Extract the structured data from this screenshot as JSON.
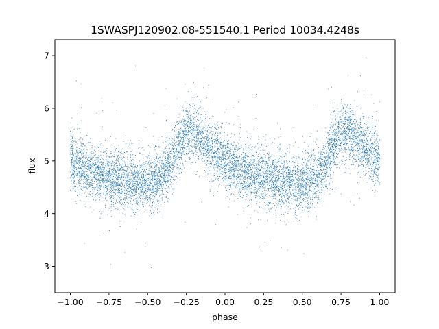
{
  "chart_data": {
    "type": "scatter",
    "title": "1SWASPJ120902.08-551540.1 Period 10034.4248s",
    "xlabel": "phase",
    "ylabel": "flux",
    "xlim": [
      -1.1,
      1.1
    ],
    "ylim": [
      2.5,
      7.3
    ],
    "xticks": [
      -1.0,
      -0.75,
      -0.5,
      -0.25,
      0.0,
      0.25,
      0.5,
      0.75,
      1.0
    ],
    "xtick_labels": [
      "−1.00",
      "−0.75",
      "−0.50",
      "−0.25",
      "0.00",
      "0.25",
      "0.50",
      "0.75",
      "1.00"
    ],
    "yticks": [
      3,
      4,
      5,
      6,
      7
    ],
    "ytick_labels": [
      "3",
      "4",
      "5",
      "6",
      "7"
    ],
    "grid": false,
    "legend": "none",
    "marker_color": "#1f77b4",
    "series": [
      {
        "phase_range": [
          -1.0,
          1.0
        ],
        "periods_shown": 2,
        "point_count_approx": 9000,
        "mean_flux_profile": {
          "phase": [
            0.0,
            0.1,
            0.2,
            0.3,
            0.4,
            0.5,
            0.55,
            0.6,
            0.65,
            0.7,
            0.75,
            0.8,
            0.85,
            0.9,
            0.95,
            1.0
          ],
          "flux": [
            5.0,
            4.85,
            4.72,
            4.66,
            4.6,
            4.57,
            4.62,
            4.75,
            4.98,
            5.3,
            5.58,
            5.55,
            5.4,
            5.28,
            5.15,
            5.02
          ]
        },
        "scatter_sigma": 0.27
      }
    ]
  }
}
